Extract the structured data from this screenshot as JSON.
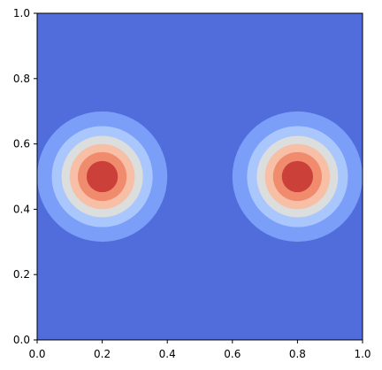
{
  "chart_data": {
    "type": "heatmap",
    "title": "",
    "xlabel": "",
    "ylabel": "",
    "xlim": [
      0.0,
      1.0
    ],
    "ylim": [
      0.0,
      1.0
    ],
    "grid": false,
    "x_ticks": [
      0.0,
      0.2,
      0.4,
      0.6,
      0.8,
      1.0
    ],
    "y_ticks": [
      0.0,
      0.2,
      0.4,
      0.6,
      0.8,
      1.0
    ],
    "x_tick_labels": [
      "0.0",
      "0.2",
      "0.4",
      "0.6",
      "0.8",
      "1.0"
    ],
    "y_tick_labels": [
      "0.0",
      "0.2",
      "0.4",
      "0.6",
      "0.8",
      "1.0"
    ],
    "colormap": "coolwarm",
    "background_color": "#516ddb",
    "blobs": [
      {
        "center": [
          0.2,
          0.5
        ]
      },
      {
        "center": [
          0.8,
          0.5
        ]
      }
    ],
    "contour_levels": [
      {
        "outer_radius": 0.2,
        "color": "#7b9ff9"
      },
      {
        "outer_radius": 0.155,
        "color": "#aac7fd"
      },
      {
        "outer_radius": 0.125,
        "color": "#dcdddd"
      },
      {
        "outer_radius": 0.1,
        "color": "#f6bfa6"
      },
      {
        "outer_radius": 0.075,
        "color": "#f08b6e"
      },
      {
        "outer_radius": 0.048,
        "color": "#cc403a"
      }
    ]
  }
}
